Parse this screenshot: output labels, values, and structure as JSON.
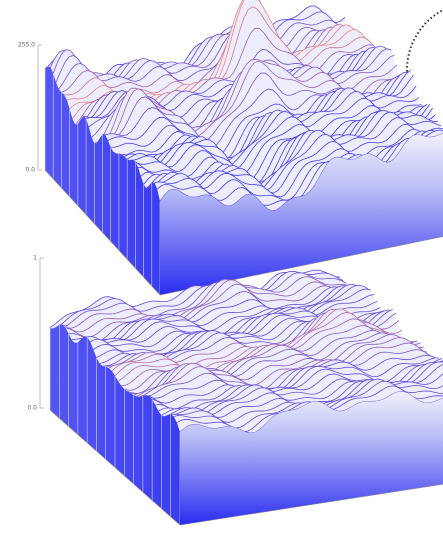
{
  "chart_data": [
    {
      "type": "surface3d",
      "zlim": [
        0,
        255
      ],
      "zticks": [
        {
          "value": 0,
          "label": "0.0"
        },
        {
          "value": 255,
          "label": "255.0"
        }
      ]
    },
    {
      "type": "surface3d",
      "zlim": [
        0,
        1
      ],
      "zticks": [
        {
          "value": 0,
          "label": "0.0"
        },
        1
      ]
    }
  ]
}
